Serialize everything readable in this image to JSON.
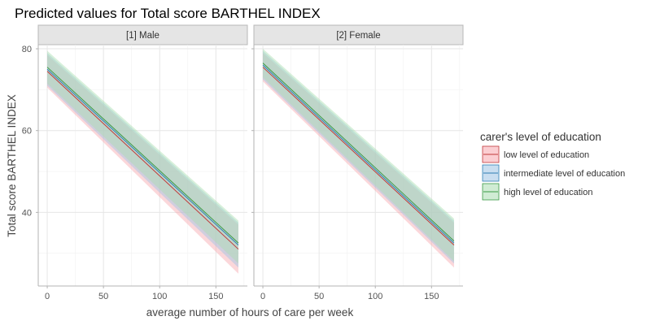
{
  "chart_data": {
    "type": "line",
    "title": "Predicted values for Total score BARTHEL INDEX",
    "xlabel": "average number of hours of care per week",
    "ylabel": "Total score BARTHEL INDEX",
    "xlim": [
      -8,
      178
    ],
    "ylim": [
      22,
      81
    ],
    "xticks": [
      0,
      50,
      100,
      150
    ],
    "yticks": [
      40,
      60,
      80
    ],
    "grid": true,
    "facets": [
      "[1] Male",
      "[2] Female"
    ],
    "legend": {
      "title": "carer's level of education",
      "position": "right",
      "entries": [
        "low level of education",
        "intermediate level of education",
        "high level of education"
      ]
    },
    "colors": {
      "low level of education": "#C0393B",
      "intermediate level of education": "#2F7FB5",
      "high level of education": "#3A9A45"
    },
    "band_colors": {
      "low level of education": "#F7A6AD",
      "intermediate level of education": "#9CC3E4",
      "high level of education": "#A9DDB0"
    },
    "panels": [
      {
        "facet": "[1] Male",
        "series": [
          {
            "name": "low level of education",
            "x": [
              0,
              170
            ],
            "y": [
              74.5,
              31.0
            ],
            "lower": [
              70.5,
              25.0
            ],
            "upper": [
              78.5,
              37.0
            ]
          },
          {
            "name": "intermediate level of education",
            "x": [
              0,
              170
            ],
            "y": [
              75.0,
              32.0
            ],
            "lower": [
              71.0,
              26.5
            ],
            "upper": [
              79.0,
              37.5
            ]
          },
          {
            "name": "high level of education",
            "x": [
              0,
              170
            ],
            "y": [
              75.5,
              32.5
            ],
            "lower": [
              71.5,
              27.5
            ],
            "upper": [
              79.5,
              38.0
            ]
          }
        ]
      },
      {
        "facet": "[2] Female",
        "series": [
          {
            "name": "low level of education",
            "x": [
              0,
              170
            ],
            "y": [
              75.5,
              32.0
            ],
            "lower": [
              72.0,
              26.5
            ],
            "upper": [
              79.0,
              37.5
            ]
          },
          {
            "name": "intermediate level of education",
            "x": [
              0,
              170
            ],
            "y": [
              76.0,
              32.5
            ],
            "lower": [
              72.5,
              27.5
            ],
            "upper": [
              79.5,
              38.0
            ]
          },
          {
            "name": "high level of education",
            "x": [
              0,
              170
            ],
            "y": [
              76.5,
              33.0
            ],
            "lower": [
              73.0,
              28.0
            ],
            "upper": [
              80.0,
              38.5
            ]
          }
        ]
      }
    ]
  }
}
